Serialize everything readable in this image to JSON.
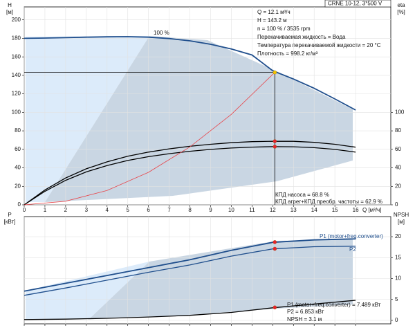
{
  "chart_data": [
    {
      "type": "line",
      "title": "CRNE 10-12, 3*500 V",
      "xlabel": "Q [м³/ч]",
      "ylabel": [
        "H",
        "[м]"
      ],
      "y2label": [
        "eta",
        "[%]"
      ],
      "xlim": [
        0,
        17.7
      ],
      "xticks": [
        0,
        1,
        2,
        3,
        4,
        5,
        6,
        7,
        8,
        9,
        10,
        11,
        12,
        13,
        14,
        15,
        16
      ],
      "ylim": [
        0,
        214
      ],
      "yticks": [
        0,
        20,
        40,
        60,
        80,
        100,
        120,
        140,
        160,
        180,
        200
      ],
      "y2lim": [
        0,
        214
      ],
      "y2ticks": [
        0,
        20,
        40,
        60,
        80,
        100
      ],
      "grid": true,
      "series": [
        {
          "name": "100 %",
          "color": "#1f4e8c",
          "axis": "y",
          "x": [
            0,
            1,
            2,
            3,
            4,
            5,
            6,
            7,
            8,
            9,
            10,
            11,
            12,
            13,
            14,
            15,
            16
          ],
          "values": [
            180,
            180.3,
            180.8,
            181.3,
            181.7,
            181.8,
            181.3,
            179.8,
            177.3,
            173.6,
            168.6,
            162,
            145,
            136,
            126,
            114.5,
            102.5
          ]
        },
        {
          "color": "#000000",
          "axis": "y2",
          "x": [
            0,
            1,
            2,
            3,
            4,
            5,
            6,
            7,
            8,
            9,
            10,
            11,
            12,
            13,
            14,
            15,
            16
          ],
          "values": [
            0,
            16,
            29,
            39,
            46.5,
            52.5,
            57,
            60.5,
            63.3,
            65.5,
            67.2,
            68.3,
            68.8,
            68.7,
            67.6,
            65.5,
            62.3
          ]
        },
        {
          "color": "#000000",
          "axis": "y2",
          "x": [
            0,
            1,
            2,
            3,
            4,
            5,
            6,
            7,
            8,
            9,
            10,
            11,
            12,
            13,
            14,
            15,
            16
          ],
          "values": [
            0,
            14.6,
            26.5,
            35.6,
            42.5,
            48,
            52.1,
            55.3,
            57.9,
            59.9,
            61.4,
            62.4,
            62.9,
            62.8,
            61.8,
            59.9,
            57
          ]
        },
        {
          "color": "#e8454a",
          "axis": "y",
          "x": [
            0,
            2,
            4,
            6,
            8,
            10,
            12.1
          ],
          "values": [
            0,
            3.9,
            15.6,
            35.2,
            62.6,
            97.8,
            143.2
          ]
        }
      ],
      "points": [
        {
          "x": 12.1,
          "y": 143.2,
          "axis": "y",
          "color": "#f5c400"
        },
        {
          "x": 12.1,
          "y": 68.8,
          "axis": "y2",
          "color": "#e8232a"
        },
        {
          "x": 12.1,
          "y": 62.9,
          "axis": "y2",
          "color": "#e8232a"
        }
      ],
      "annotations": [
        "Q = 12.1 м³/ч",
        "H = 143.2 м",
        "n = 100 % / 3535 rpm",
        "Перекачиваемая жидкость = Вода",
        "Температура перекачиваемой жидкости = 20 °C",
        "Плотность = 998.2 кг/м³",
        "КПД насоса = 68.8 %",
        "КПД агрег+КПД преобр. частоты = 62.9 %"
      ]
    },
    {
      "type": "line",
      "ylabel": [
        "P",
        "[кВт]"
      ],
      "y2label": [
        "NPSH",
        "[м]"
      ],
      "xlim": [
        0,
        17.7
      ],
      "xticks": [
        0,
        1,
        2,
        3,
        4,
        5,
        6,
        7,
        8,
        9,
        10,
        11,
        12,
        13,
        14,
        15,
        16
      ],
      "x_tick_labels": false,
      "ylim": [
        -0.33,
        9.93
      ],
      "y2lim": [
        -0.83,
        24.8
      ],
      "y2ticks": [
        0,
        5,
        10,
        15,
        20
      ],
      "grid": true,
      "series": [
        {
          "name": "P1 (motor+freq.converter)",
          "color": "#1f4e8c",
          "axis": "y",
          "x": [
            0,
            2,
            4,
            6,
            8,
            10,
            12,
            14,
            16
          ],
          "values": [
            2.8,
            3.55,
            4.3,
            5.05,
            5.8,
            6.7,
            7.47,
            7.7,
            7.8
          ]
        },
        {
          "name": "P2",
          "color": "#1f4e8c",
          "axis": "y",
          "x": [
            0,
            2,
            4,
            6,
            8,
            10,
            12,
            14,
            16
          ],
          "values": [
            2.4,
            3.1,
            3.85,
            4.6,
            5.3,
            6.15,
            6.84,
            7.05,
            7.1
          ]
        },
        {
          "color": "#000000",
          "axis": "y2",
          "x": [
            0,
            2,
            4,
            6,
            8,
            10,
            12,
            14,
            16
          ],
          "values": [
            0.2,
            0.3,
            0.5,
            0.8,
            1.2,
            1.9,
            3,
            3.9,
            4.8
          ]
        }
      ],
      "points": [
        {
          "x": 12.1,
          "y": 7.489,
          "axis": "y",
          "color": "#e8232a"
        },
        {
          "x": 12.1,
          "y": 6.853,
          "axis": "y",
          "color": "#e8232a"
        },
        {
          "x": 12.1,
          "y": 3.1,
          "axis": "y2",
          "color": "#e8232a"
        }
      ],
      "annotations": [
        "P1 (motor+freq.converter) = 7.489 кВт",
        "P2 = 6.853 кВт",
        "NPSH = 3.1 м"
      ]
    }
  ]
}
